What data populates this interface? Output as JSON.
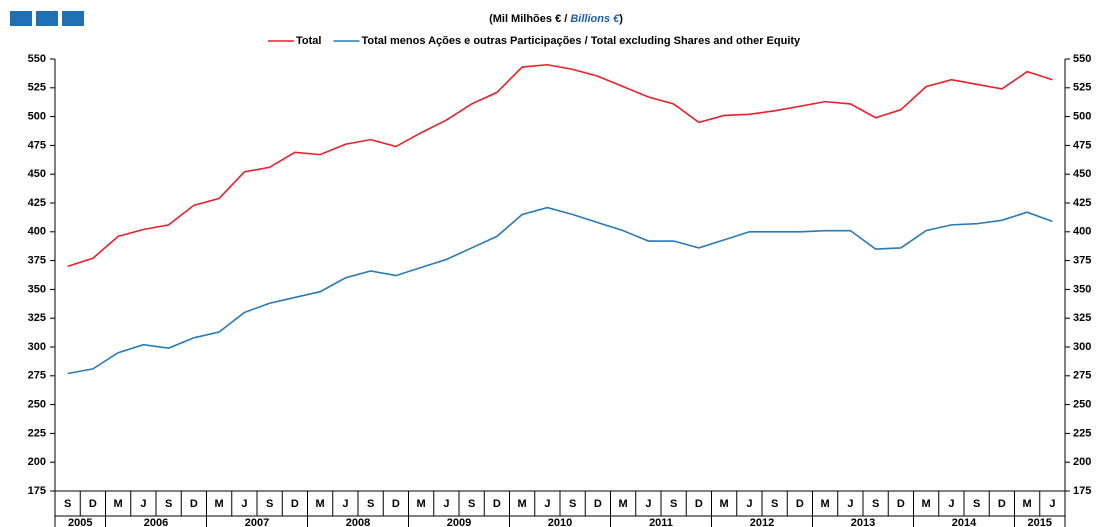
{
  "chart_data": {
    "type": "line",
    "title": [
      "(Mil Milhões € / ",
      "Billions €",
      ")"
    ],
    "category_groups": [
      {
        "label": "2005",
        "categories": [
          "S",
          "D"
        ]
      },
      {
        "label": "2006",
        "categories": [
          "M",
          "J",
          "S",
          "D"
        ]
      },
      {
        "label": "2007",
        "categories": [
          "M",
          "J",
          "S",
          "D"
        ]
      },
      {
        "label": "2008",
        "categories": [
          "M",
          "J",
          "S",
          "D"
        ]
      },
      {
        "label": "2009",
        "categories": [
          "M",
          "J",
          "S",
          "D"
        ]
      },
      {
        "label": "2010",
        "categories": [
          "M",
          "J",
          "S",
          "D"
        ]
      },
      {
        "label": "2011",
        "categories": [
          "M",
          "J",
          "S",
          "D"
        ]
      },
      {
        "label": "2012",
        "categories": [
          "M",
          "J",
          "S",
          "D"
        ]
      },
      {
        "label": "2013",
        "categories": [
          "M",
          "J",
          "S",
          "D"
        ]
      },
      {
        "label": "2014",
        "categories": [
          "M",
          "J",
          "S",
          "D"
        ]
      },
      {
        "label": "2015",
        "categories": [
          "M",
          "J"
        ]
      }
    ],
    "series": [
      {
        "name": "Total",
        "color": "#e8202a",
        "values": [
          370,
          377,
          396,
          402,
          406,
          423,
          429,
          452,
          456,
          469,
          467,
          476,
          480,
          474,
          486,
          497,
          511,
          521,
          543,
          545,
          541,
          535,
          526,
          517,
          511,
          495,
          501,
          502,
          505,
          509,
          513,
          511,
          499,
          506,
          526,
          532,
          528,
          524,
          539,
          532
        ]
      },
      {
        "name": "Total menos Ações e outras Participações / Total excluding Shares and other Equity",
        "color": "#2a7ab8",
        "values": [
          277,
          281,
          295,
          302,
          299,
          308,
          313,
          330,
          338,
          343,
          348,
          360,
          366,
          362,
          369,
          376,
          386,
          396,
          415,
          421,
          415,
          408,
          401,
          392,
          392,
          386,
          393,
          400,
          400,
          400,
          401,
          401,
          385,
          386,
          401,
          406,
          407,
          410,
          417,
          409
        ]
      }
    ],
    "ylim": [
      175,
      550
    ],
    "yticks": [
      175,
      200,
      225,
      250,
      275,
      300,
      325,
      350,
      375,
      400,
      425,
      450,
      475,
      500,
      525,
      550
    ],
    "grid": false
  }
}
